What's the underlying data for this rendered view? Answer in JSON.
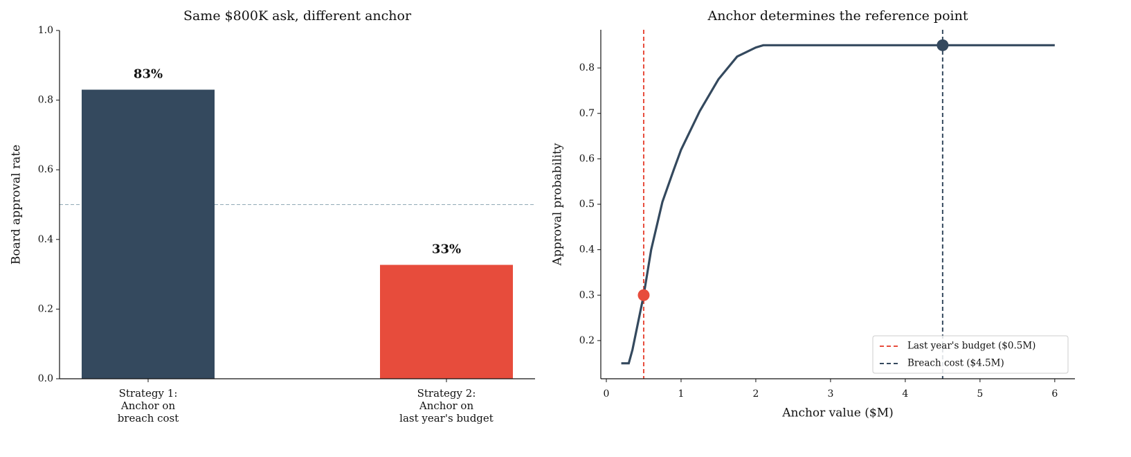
{
  "chart_data": [
    {
      "type": "bar",
      "title": "Same $800K ask, different anchor",
      "ylabel": "Board approval rate",
      "categories": [
        "Strategy 1:\nAnchor on\nbreach cost",
        "Strategy 2:\nAnchor on\nlast year's budget"
      ],
      "values": [
        0.83,
        0.327
      ],
      "value_labels": [
        "83%",
        "33%"
      ],
      "colors": [
        "#34495e",
        "#e74c3c"
      ],
      "ylim": [
        0,
        1
      ],
      "yticks": [
        {
          "value": 0,
          "label": "0.0"
        },
        0.2,
        0.4,
        0.6,
        0.8,
        {
          "value": 1,
          "label": "1.0"
        }
      ],
      "hline": {
        "y": 0.5,
        "color": "#8fa9b5"
      }
    },
    {
      "type": "line",
      "title": "Anchor determines the reference point",
      "xlabel": "Anchor value ($M)",
      "ylabel": "Approval probability",
      "x": [
        0.2,
        0.3,
        0.35,
        0.5,
        0.6,
        0.75,
        0.9,
        1.0,
        1.25,
        1.5,
        1.75,
        2.0,
        2.1,
        3,
        4,
        5,
        6
      ],
      "values": [
        0.15,
        0.15,
        0.18,
        0.3,
        0.4,
        0.505,
        0.575,
        0.62,
        0.705,
        0.775,
        0.825,
        0.845,
        0.85,
        0.85,
        0.85,
        0.85,
        0.85
      ],
      "color": "#34495e",
      "xlim": [
        -0.074,
        6.27
      ],
      "xticks": [
        0,
        1,
        2,
        3,
        4,
        5,
        6
      ],
      "ylim": [
        0.116,
        0.884
      ],
      "yticks": [
        0.2,
        0.3,
        0.4,
        0.5,
        0.6,
        0.7,
        0.8
      ],
      "vlines": [
        {
          "x": 0.5,
          "color": "#e74c3c",
          "name": "Last year's budget ($0.5M)"
        },
        {
          "x": 4.5,
          "color": "#34495e",
          "name": "Breach cost ($4.5M)"
        }
      ],
      "markers": [
        {
          "x": 0.5,
          "y": 0.3,
          "color": "#e74c3c"
        },
        {
          "x": 4.5,
          "y": 0.85,
          "color": "#34495e"
        }
      ],
      "legend": "lower right"
    }
  ]
}
